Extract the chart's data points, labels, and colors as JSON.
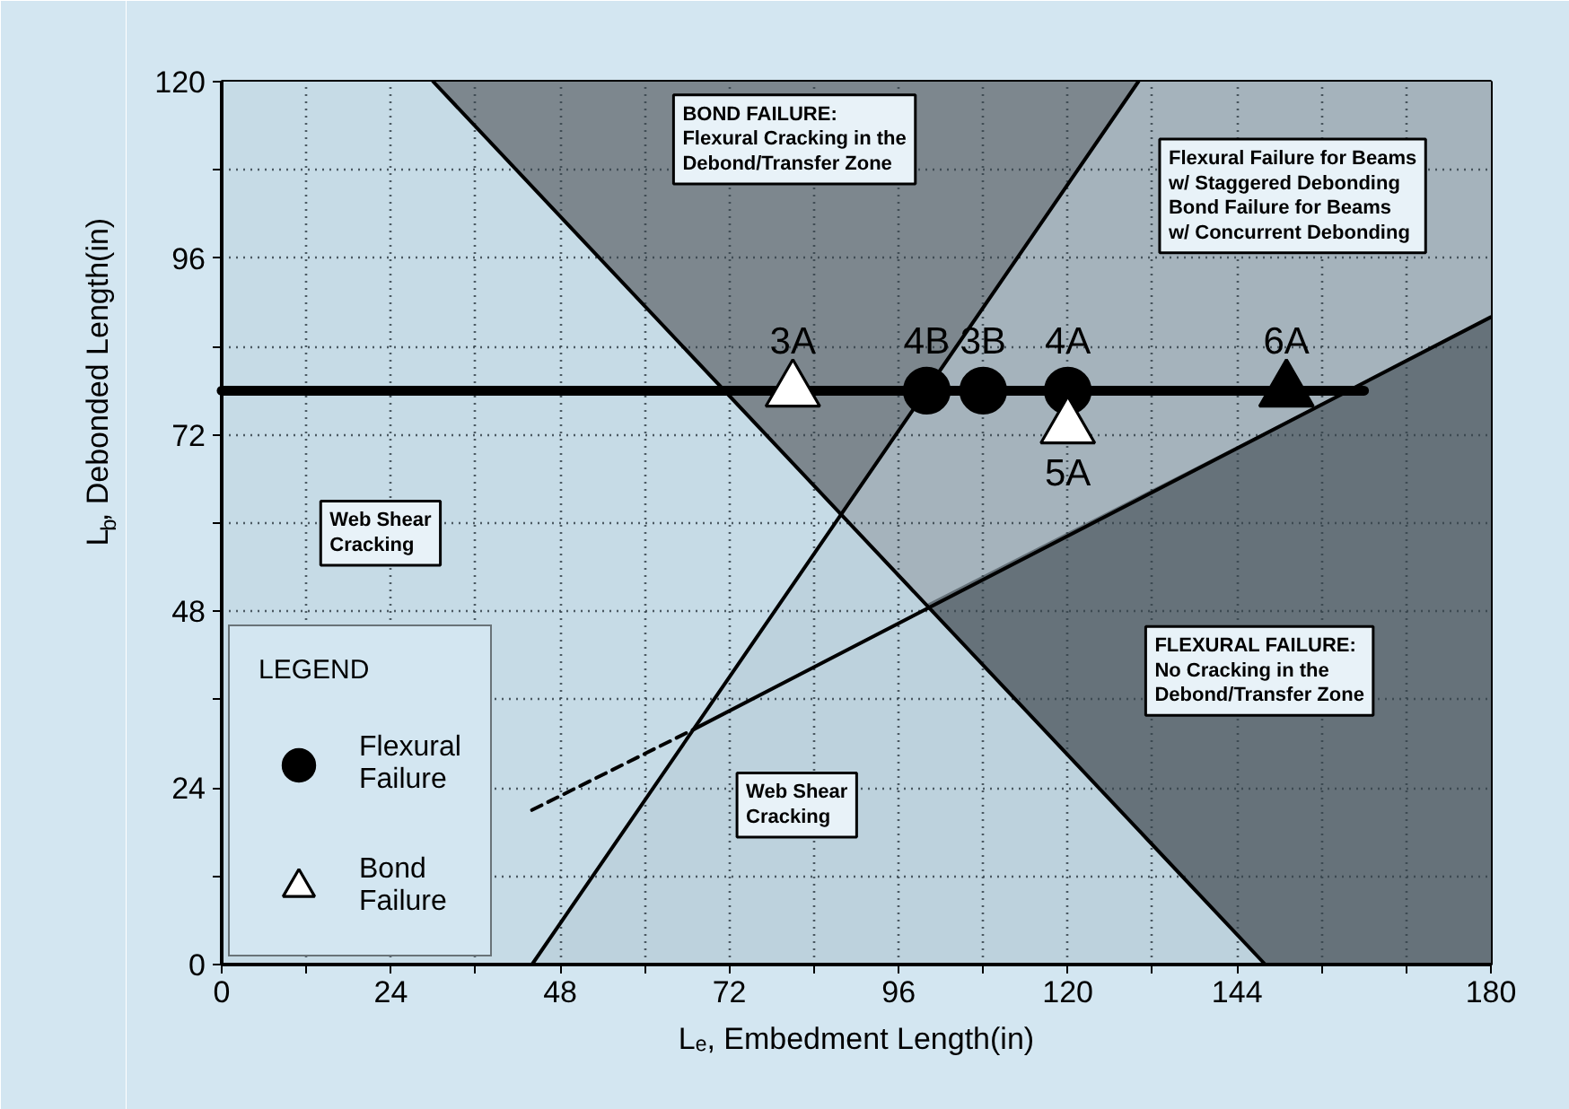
{
  "chart_data": {
    "type": "scatter",
    "xlabel": "Lₑ, Embedment Length(in)",
    "ylabel": "L$_{b}$, Debonded Length(in)",
    "xlim": [
      0,
      180
    ],
    "ylim": [
      0,
      120
    ],
    "xticks": [
      0,
      {
        "value": 12,
        "label": null
      },
      24,
      {
        "value": 36,
        "label": null
      },
      48,
      {
        "value": 60,
        "label": null
      },
      72,
      {
        "value": 84,
        "label": null
      },
      96,
      {
        "value": 108,
        "label": null
      },
      120,
      {
        "value": 132,
        "label": null
      },
      144,
      {
        "value": 156,
        "label": null
      },
      {
        "value": 168,
        "label": null
      },
      180
    ],
    "yticks": [
      0,
      {
        "value": 12,
        "label": null
      },
      24,
      {
        "value": 36,
        "label": null
      },
      48,
      {
        "value": 60,
        "label": null
      },
      72,
      {
        "value": 84,
        "label": null
      },
      96,
      {
        "value": 108,
        "label": null
      },
      120
    ],
    "grid": true,
    "legend": "bottom left",
    "legend_title": "LEGEND",
    "series": [
      {
        "type": "area",
        "color": "#7d878e",
        "x": [
          30,
          130
        ],
        "values": [
          120,
          120
        ]
      },
      {
        "type": "area",
        "color": "#a5b3bc",
        "x": [
          88,
          130,
          180
        ],
        "values": [
          61,
          120,
          120
        ]
      },
      {
        "type": "area",
        "color": "#66727a",
        "x": [
          100,
          180
        ],
        "values": [
          49,
          88
        ]
      },
      {
        "type": "area",
        "color": "#c6dbe6",
        "x": [
          0,
          30,
          88
        ],
        "values": [
          120,
          120,
          61
        ]
      },
      {
        "type": "area",
        "color": "#bdd2dd",
        "x": [
          44,
          88,
          148
        ],
        "values": [
          0,
          61,
          0
        ]
      },
      {
        "type": "line",
        "color": "#000000",
        "x": [
          30,
          148
        ],
        "values": [
          120,
          0
        ]
      },
      {
        "type": "line",
        "color": "#000000",
        "x": [
          44,
          130
        ],
        "values": [
          0,
          120
        ]
      },
      {
        "type": "line",
        "color": "#000000",
        "line_style": "dashed",
        "x": [
          44,
          67
        ],
        "values": [
          21,
          32
        ]
      },
      {
        "type": "line",
        "color": "#000000",
        "x": [
          67,
          180
        ],
        "values": [
          32,
          88
        ]
      },
      {
        "type": "line",
        "color": "#000000",
        "x": [
          0,
          162
        ],
        "values": [
          78,
          78
        ]
      },
      {
        "name": "Flexural Failure",
        "color": "#000000",
        "marker": "circle",
        "x": [
          100,
          108,
          120
        ],
        "values": [
          78,
          78,
          78
        ]
      },
      {
        "name": "Bond Failure",
        "color": "#ffffff",
        "marker": "triangle",
        "x": [
          81,
          120
        ],
        "values": [
          78,
          73
        ]
      },
      {
        "color": "#000000",
        "marker": "triangle",
        "x": [
          151
        ],
        "values": [
          78
        ]
      }
    ],
    "annotations": [
      "BOND FAILURE:\nFlexural Cracking in the\nDebond/Transfer Zone",
      "Flexural Failure for Beams\nw/ Staggered Debonding\nBond Failure for Beams\nw/ Concurrent Debonding",
      "Web Shear\nCracking",
      "Web Shear\nCracking",
      "FLEXURAL FAILURE:\nNo Cracking in the\nDebond/Transfer Zone",
      {
        "text": "3A",
        "x": 81,
        "y": 78
      },
      {
        "text": "4B",
        "x": 100,
        "y": 78
      },
      {
        "text": "3B",
        "x": 108,
        "y": 78
      },
      {
        "text": "4A",
        "x": 120,
        "y": 78
      },
      {
        "text": "6A",
        "x": 151,
        "y": 78
      },
      {
        "text": "5A",
        "x": 120,
        "y": 73
      }
    ]
  }
}
